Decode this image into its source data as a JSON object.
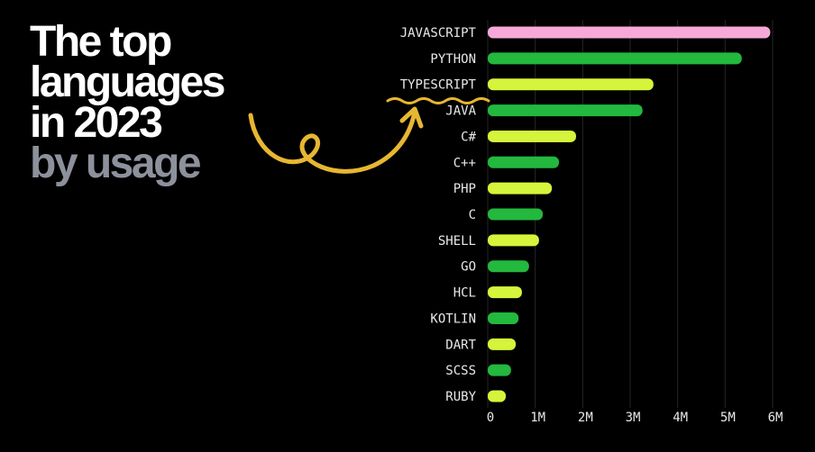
{
  "chart_data": {
    "type": "bar",
    "orientation": "horizontal",
    "title": "The top languages in 2023",
    "subtitle": "by usage",
    "categories": [
      "JAVASCRIPT",
      "PYTHON",
      "TYPESCRIPT",
      "JAVA",
      "C#",
      "C++",
      "PHP",
      "C",
      "SHELL",
      "GO",
      "HCL",
      "KOTLIN",
      "DART",
      "SCSS",
      "RUBY"
    ],
    "values": [
      5950000,
      5350000,
      3490000,
      3260000,
      1860000,
      1500000,
      1350000,
      1160000,
      1080000,
      870000,
      720000,
      650000,
      590000,
      490000,
      380000
    ],
    "colors": [
      "#f6a9d9",
      "#23b83e",
      "#d5f43c",
      "#23b83e",
      "#d5f43c",
      "#23b83e",
      "#d5f43c",
      "#23b83e",
      "#d5f43c",
      "#23b83e",
      "#d5f43c",
      "#23b83e",
      "#d5f43c",
      "#23b83e",
      "#d5f43c"
    ],
    "xlim": [
      0,
      6000000
    ],
    "xticks": [
      0,
      {
        "value": 1000000,
        "label": "1M"
      },
      {
        "value": 2000000,
        "label": "2M"
      },
      {
        "value": 3000000,
        "label": "3M"
      },
      {
        "value": 4000000,
        "label": "4M"
      },
      {
        "value": 5000000,
        "label": "5M"
      },
      {
        "value": 6000000,
        "label": "6M"
      }
    ],
    "grid": true
  }
}
